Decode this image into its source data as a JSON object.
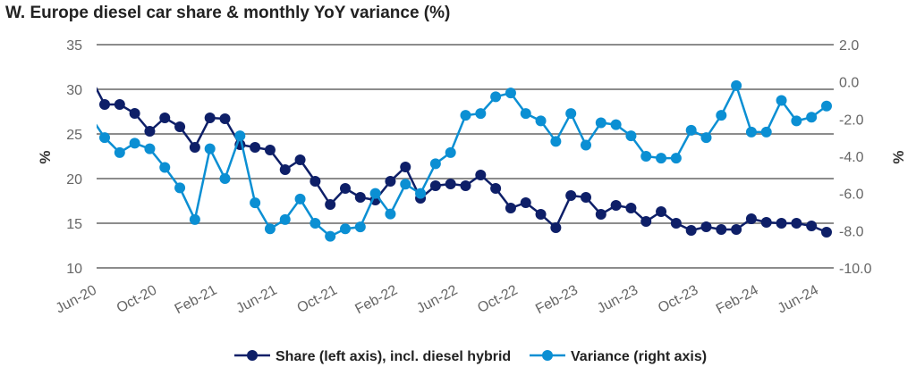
{
  "chart_data": {
    "type": "line",
    "title": "W. Europe diesel car share & monthly YoY variance (%)",
    "x": [
      "Jun-20",
      "Jul-20",
      "Aug-20",
      "Sep-20",
      "Oct-20",
      "Nov-20",
      "Dec-20",
      "Jan-21",
      "Feb-21",
      "Mar-21",
      "Apr-21",
      "May-21",
      "Jun-21",
      "Jul-21",
      "Aug-21",
      "Sep-21",
      "Oct-21",
      "Nov-21",
      "Dec-21",
      "Jan-22",
      "Feb-22",
      "Mar-22",
      "Apr-22",
      "May-22",
      "Jun-22",
      "Jul-22",
      "Aug-22",
      "Sep-22",
      "Oct-22",
      "Nov-22",
      "Dec-22",
      "Jan-23",
      "Feb-23",
      "Mar-23",
      "Apr-23",
      "May-23",
      "Jun-23",
      "Jul-23",
      "Aug-23",
      "Sep-23",
      "Oct-23",
      "Nov-23",
      "Dec-23",
      "Jan-24",
      "Feb-24",
      "Mar-24",
      "Apr-24",
      "May-24",
      "Jun-24"
    ],
    "x_tick_labels": [
      "Jun-20",
      "Oct-20",
      "Feb-21",
      "Jun-21",
      "Oct-21",
      "Feb-22",
      "Jun-22",
      "Oct-22",
      "Feb-23",
      "Jun-23",
      "Oct-23",
      "Feb-24",
      "Jun-24"
    ],
    "ylabel_left": "%",
    "ylabel_right": "%",
    "ylim_left": [
      10,
      35
    ],
    "yticks_left": [
      "10",
      "15",
      "20",
      "25",
      "30",
      "35"
    ],
    "ylim_right": [
      -10,
      2
    ],
    "yticks_right": [
      "-10.0",
      "-8.0",
      "-6.0",
      "-4.0",
      "-2.0",
      "0.0",
      "2.0"
    ],
    "grid": true,
    "legend_position": "bottom",
    "series": [
      {
        "name": "Share (left axis), incl. diesel hybrid",
        "axis": "left",
        "color": "#0e1f68",
        "values": [
          28.3,
          28.3,
          27.3,
          25.3,
          26.8,
          25.8,
          23.5,
          26.8,
          26.7,
          23.8,
          23.5,
          23.2,
          21.0,
          22.1,
          19.7,
          17.1,
          18.9,
          17.9,
          17.6,
          19.7,
          21.3,
          17.8,
          19.2,
          19.4,
          19.2,
          20.4,
          18.9,
          16.7,
          17.3,
          16.0,
          14.5,
          18.1,
          17.9,
          16.0,
          17.0,
          16.7,
          15.2,
          16.3,
          15.0,
          14.2,
          14.6,
          14.3,
          14.3,
          15.5,
          15.1,
          15.0,
          15.0,
          14.7,
          14.0
        ]
      },
      {
        "name": "Variance (right axis)",
        "axis": "right",
        "color": "#0b8fd3",
        "values": [
          -3.0,
          -3.8,
          -3.3,
          -3.6,
          -4.6,
          -5.7,
          -7.4,
          -3.6,
          -5.2,
          -2.9,
          -6.5,
          -7.9,
          -7.4,
          -6.3,
          -7.6,
          -8.3,
          -7.9,
          -7.8,
          -6.0,
          -7.1,
          -5.5,
          -6.0,
          -4.4,
          -3.8,
          -1.8,
          -1.7,
          -0.8,
          -0.6,
          -1.7,
          -2.1,
          -3.2,
          -1.7,
          -3.4,
          -2.2,
          -2.3,
          -2.9,
          -4.0,
          -4.1,
          -4.1,
          -2.6,
          -3.0,
          -1.8,
          -0.2,
          -2.7,
          -2.7,
          -1.0,
          -2.1,
          -1.9,
          -1.3
        ]
      }
    ]
  }
}
